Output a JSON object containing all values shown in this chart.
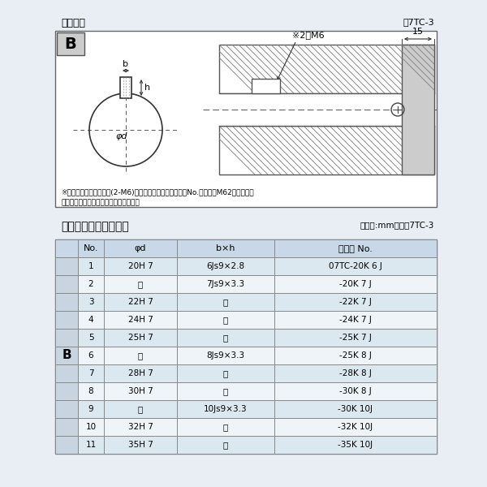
{
  "title_top": "軸穴形状",
  "fig_label_top": "図7TC-3",
  "diagram_note1": "※セットボルト用タップ(2-M6)が必要な場合は右記コードNo.の末尾にM62を付ける。",
  "diagram_note2": "（セットボルトは付属されています。）",
  "table_title": "軸穴形状コード一覧表",
  "table_unit": "（単位:mm）　表7TC-3",
  "col_headers": [
    "No.",
    "φd",
    "b×h",
    "コード No."
  ],
  "B_label": "B",
  "rows": [
    [
      "1",
      "20H 7",
      "6Js9×2.8",
      "07TC-20K 6 J"
    ],
    [
      "2",
      "〃",
      "7Js9×3.3",
      "-20K 7 J"
    ],
    [
      "3",
      "22H 7",
      "〃",
      "-22K 7 J"
    ],
    [
      "4",
      "24H 7",
      "〃",
      "-24K 7 J"
    ],
    [
      "5",
      "25H 7",
      "〃",
      "-25K 7 J"
    ],
    [
      "6",
      "〃",
      "8Js9×3.3",
      "-25K 8 J"
    ],
    [
      "7",
      "28H 7",
      "〃",
      "-28K 8 J"
    ],
    [
      "8",
      "30H 7",
      "〃",
      "-30K 8 J"
    ],
    [
      "9",
      "〃",
      "10Js9×3.3",
      "-30K 10J"
    ],
    [
      "10",
      "32H 7",
      "〃",
      "-32K 10J"
    ],
    [
      "11",
      "35H 7",
      "〃",
      "-35K 10J"
    ]
  ],
  "header_bg": "#c8d8e8",
  "row_bg_odd": "#dce8f0",
  "row_bg_even": "#eef4f8",
  "b_col_bg": "#c8d4e0",
  "outer_bg": "#e8eef4",
  "inner_bg": "#ffffff",
  "border_color": "#888888",
  "text_color": "#222222",
  "hatch_color": "#aaaaaa"
}
